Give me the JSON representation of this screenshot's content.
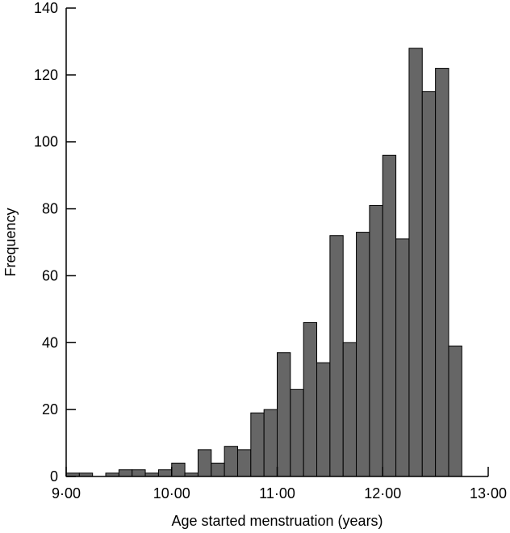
{
  "chart_data": {
    "type": "bar",
    "title": "",
    "xlabel": "Age started menstruation (years)",
    "ylabel": "Frequency",
    "xlim": [
      9.0,
      13.0
    ],
    "ylim": [
      0,
      140
    ],
    "bin_width": 0.125,
    "x_ticks": [
      9,
      10,
      11,
      12,
      13
    ],
    "x_tick_labels": [
      "9·00",
      "10·00",
      "11·00",
      "12·00",
      "13·00"
    ],
    "y_ticks": [
      0,
      20,
      40,
      60,
      80,
      100,
      120,
      140
    ],
    "y_tick_labels": [
      "0",
      "20",
      "40",
      "60",
      "80",
      "100",
      "120",
      "140"
    ],
    "bin_starts": [
      9.0,
      9.125,
      9.25,
      9.375,
      9.5,
      9.625,
      9.75,
      9.875,
      10.0,
      10.125,
      10.25,
      10.375,
      10.5,
      10.625,
      10.75,
      10.875,
      11.0,
      11.125,
      11.25,
      11.375,
      11.5,
      11.625,
      11.75,
      11.875,
      12.0,
      12.125,
      12.25,
      12.375,
      12.5,
      12.625
    ],
    "values": [
      1,
      1,
      0,
      1,
      2,
      2,
      1,
      2,
      4,
      1,
      8,
      4,
      9,
      8,
      19,
      20,
      37,
      26,
      46,
      34,
      72,
      40,
      73,
      81,
      96,
      71,
      128,
      115,
      122,
      39
    ],
    "grid": false,
    "bar_color": "#666666"
  }
}
